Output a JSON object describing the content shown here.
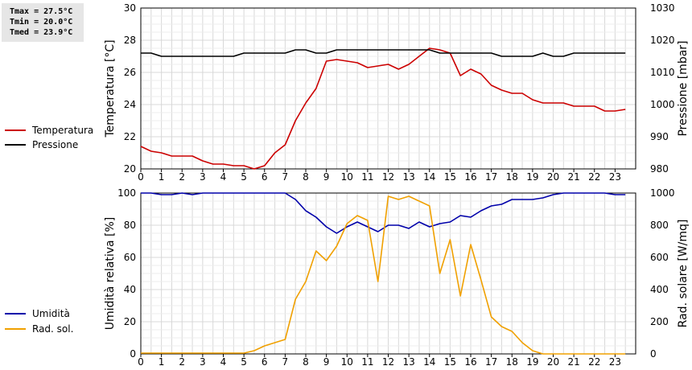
{
  "stats": {
    "tmax": "Tmax = 27.5°C",
    "tmin": "Tmin = 20.0°C",
    "tmed": "Tmed = 23.9°C"
  },
  "colors": {
    "temperature": "#cc0000",
    "pressure": "#000000",
    "humidity": "#0000aa",
    "radiation": "#f0a000",
    "grid": "#d8d8d8"
  },
  "chart_data": [
    {
      "type": "line",
      "title": "",
      "xlabel": "",
      "ylabel": "Temperatura [°C]",
      "y2label": "Pressione [mbar]",
      "xlim": [
        0,
        24
      ],
      "ylim": [
        20,
        30
      ],
      "y2lim": [
        980,
        1030
      ],
      "xticks": [
        "0",
        "1",
        "2",
        "3",
        "4",
        "5",
        "6",
        "7",
        "8",
        "9",
        "10",
        "11",
        "12",
        "13",
        "14",
        "15",
        "16",
        "17",
        "18",
        "19",
        "20",
        "21",
        "22",
        "23"
      ],
      "yticks": [
        "20",
        "22",
        "24",
        "26",
        "28",
        "30"
      ],
      "y2ticks": [
        "980",
        "990",
        "1000",
        "1010",
        "1020",
        "1030"
      ],
      "grid": true,
      "legend_position": "left",
      "series": [
        {
          "name": "Temperatura",
          "axis": "left",
          "x": [
            0,
            0.5,
            1,
            1.5,
            2,
            2.5,
            3,
            3.5,
            4,
            4.5,
            5,
            5.5,
            6,
            6.5,
            7,
            7.5,
            8,
            8.5,
            9,
            9.5,
            10,
            10.5,
            11,
            11.5,
            12,
            12.5,
            13,
            13.5,
            14,
            14.5,
            15,
            15.5,
            16,
            16.5,
            17,
            17.5,
            18,
            18.5,
            19,
            19.5,
            20,
            20.5,
            21,
            21.5,
            22,
            22.5,
            23,
            23.5
          ],
          "y": [
            21.4,
            21.1,
            21.0,
            20.8,
            20.8,
            20.8,
            20.5,
            20.3,
            20.3,
            20.2,
            20.2,
            20.0,
            20.2,
            21.0,
            21.5,
            23.0,
            24.1,
            25.0,
            26.7,
            26.8,
            26.7,
            26.6,
            26.3,
            26.4,
            26.5,
            26.2,
            26.5,
            27.0,
            27.5,
            27.4,
            27.2,
            25.8,
            26.2,
            25.9,
            25.2,
            24.9,
            24.7,
            24.7,
            24.3,
            24.1,
            24.1,
            24.1,
            23.9,
            23.9,
            23.9,
            23.6,
            23.6,
            23.7
          ]
        },
        {
          "name": "Pressione",
          "axis": "right",
          "x": [
            0,
            0.5,
            1,
            1.5,
            2,
            2.5,
            3,
            3.5,
            4,
            4.5,
            5,
            5.5,
            6,
            6.5,
            7,
            7.5,
            8,
            8.5,
            9,
            9.5,
            10,
            10.5,
            11,
            11.5,
            12,
            12.5,
            13,
            13.5,
            14,
            14.5,
            15,
            15.5,
            16,
            16.5,
            17,
            17.5,
            18,
            18.5,
            19,
            19.5,
            20,
            20.5,
            21,
            21.5,
            22,
            22.5,
            23,
            23.5
          ],
          "y": [
            1016,
            1016,
            1015,
            1015,
            1015,
            1015,
            1015,
            1015,
            1015,
            1015,
            1016,
            1016,
            1016,
            1016,
            1016,
            1017,
            1017,
            1016,
            1016,
            1017,
            1017,
            1017,
            1017,
            1017,
            1017,
            1017,
            1017,
            1017,
            1017,
            1016,
            1016,
            1016,
            1016,
            1016,
            1016,
            1015,
            1015,
            1015,
            1015,
            1016,
            1015,
            1015,
            1016,
            1016,
            1016,
            1016,
            1016,
            1016
          ]
        }
      ]
    },
    {
      "type": "line",
      "title": "",
      "xlabel": "",
      "ylabel": "Umidità relativa [%]",
      "y2label": "Rad. solare [W/mq]",
      "xlim": [
        0,
        24
      ],
      "ylim": [
        0,
        100
      ],
      "y2lim": [
        0,
        1000
      ],
      "xticks": [
        "0",
        "1",
        "2",
        "3",
        "4",
        "5",
        "6",
        "7",
        "8",
        "9",
        "10",
        "11",
        "12",
        "13",
        "14",
        "15",
        "16",
        "17",
        "18",
        "19",
        "20",
        "21",
        "22",
        "23"
      ],
      "yticks": [
        "0",
        "20",
        "40",
        "60",
        "80",
        "100"
      ],
      "y2ticks": [
        "0",
        "200",
        "400",
        "600",
        "800",
        "1000"
      ],
      "grid": true,
      "legend_position": "left",
      "series": [
        {
          "name": "Umidità",
          "axis": "left",
          "x": [
            0,
            0.5,
            1,
            1.5,
            2,
            2.5,
            3,
            3.5,
            4,
            4.5,
            5,
            5.5,
            6,
            6.5,
            7,
            7.5,
            8,
            8.5,
            9,
            9.5,
            10,
            10.5,
            11,
            11.5,
            12,
            12.5,
            13,
            13.5,
            14,
            14.5,
            15,
            15.5,
            16,
            16.5,
            17,
            17.5,
            18,
            18.5,
            19,
            19.5,
            20,
            20.5,
            21,
            21.5,
            22,
            22.5,
            23,
            23.5
          ],
          "y": [
            100,
            100,
            99,
            99,
            100,
            99,
            100,
            100,
            100,
            100,
            100,
            100,
            100,
            100,
            100,
            96,
            89,
            85,
            79,
            75,
            79,
            82,
            79,
            76,
            80,
            80,
            78,
            82,
            79,
            81,
            82,
            86,
            85,
            89,
            92,
            93,
            96,
            96,
            96,
            97,
            99,
            100,
            100,
            100,
            100,
            100,
            99,
            99
          ]
        },
        {
          "name": "Rad. sol.",
          "axis": "right",
          "x": [
            0,
            0.5,
            1,
            1.5,
            2,
            2.5,
            3,
            3.5,
            4,
            4.5,
            5,
            5.5,
            6,
            6.5,
            7,
            7.5,
            8,
            8.5,
            9,
            9.5,
            10,
            10.5,
            11,
            11.5,
            12,
            12.5,
            13,
            13.5,
            14,
            14.5,
            15,
            15.5,
            16,
            16.5,
            17,
            17.5,
            18,
            18.5,
            19,
            19.5,
            20,
            20.5,
            21,
            21.5,
            22,
            22.5,
            23,
            23.5
          ],
          "y": [
            5,
            5,
            5,
            5,
            5,
            5,
            5,
            5,
            5,
            5,
            5,
            20,
            50,
            70,
            90,
            340,
            450,
            640,
            580,
            670,
            810,
            860,
            830,
            450,
            980,
            960,
            980,
            950,
            920,
            500,
            710,
            360,
            680,
            460,
            230,
            170,
            140,
            70,
            20,
            0,
            0,
            0,
            0,
            0,
            0,
            0,
            0,
            0
          ]
        }
      ]
    }
  ]
}
